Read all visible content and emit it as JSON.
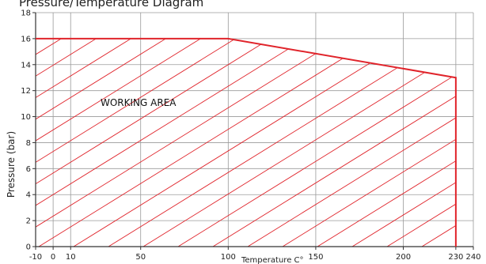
{
  "chart_data": {
    "type": "area",
    "title": "Pressure/Temperature Diagram",
    "xlabel": "Temperature C°",
    "ylabel": "Pressure (bar)",
    "x_ticks": [
      -10,
      0,
      10,
      50,
      100,
      150,
      200,
      230,
      240
    ],
    "y_ticks": [
      0,
      2,
      4,
      6,
      8,
      10,
      12,
      14,
      16,
      18
    ],
    "xlim": [
      -10,
      240
    ],
    "ylim": [
      0,
      18
    ],
    "grid": true,
    "annotation": "WORKING AREA",
    "series": [
      {
        "x": [
          -10,
          100,
          230,
          230
        ],
        "y": [
          16,
          16,
          13,
          0
        ]
      }
    ],
    "colors": {
      "boundary": "#e0242b",
      "hatch": "#e0242b",
      "grid": "#9a9a9a"
    }
  }
}
